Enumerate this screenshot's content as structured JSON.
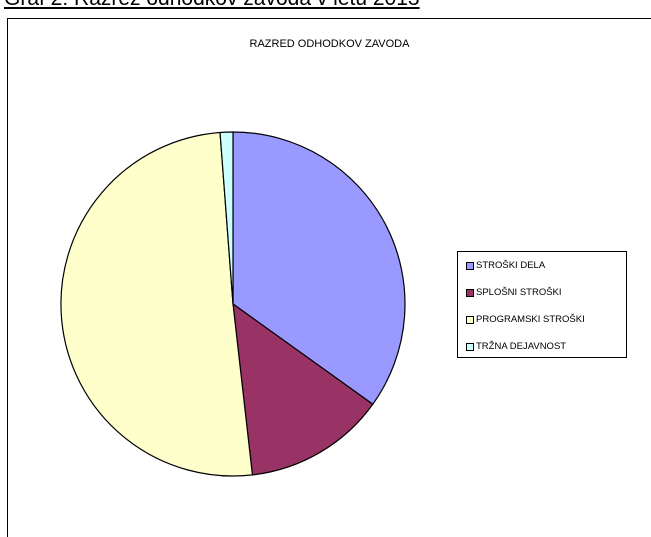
{
  "document": {
    "caption": "Graf 2: Razrez odhodkov zavoda v letu 2013"
  },
  "chart_data": {
    "type": "pie",
    "title": "RAZRED ODHODKOV ZAVODA",
    "categories": [
      "STROŠKI DELA",
      "SPLOŠNI STROŠKI",
      "PROGRAMSKI STROŠKI",
      "TRŽNA DEJAVNOST"
    ],
    "values": [
      34.9,
      13.3,
      50.6,
      1.2
    ],
    "value_unit": "percent (estimated from slice angles)",
    "colors": [
      "#9999ff",
      "#993366",
      "#ffffcc",
      "#ccffff"
    ],
    "start": "12 o'clock, clockwise",
    "legend": "right",
    "grid": false
  }
}
